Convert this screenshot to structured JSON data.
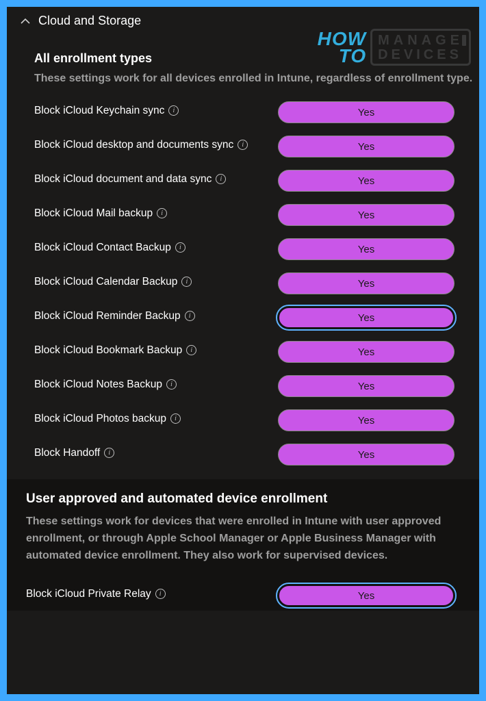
{
  "colors": {
    "page_bg": "#3ea8ff",
    "panel_bg": "#1b1a19",
    "panel_bg_darker": "#131211",
    "text": "#ffffff",
    "muted": "#9e9e9e",
    "pill_bg": "#c956e8",
    "pill_text": "#1b1a19",
    "pill_border": "#8a8886",
    "focus_ring": "#5fb3ff",
    "watermark_blue": "#35b6e8",
    "watermark_dark": "#3a3a3a"
  },
  "watermark": {
    "left_line1": "HOW",
    "left_line2": "TO",
    "right_line1": "MANAGE",
    "right_line2": "DEVICES"
  },
  "header": {
    "title": "Cloud and Storage"
  },
  "section_all": {
    "title": "All enrollment types",
    "description": "These settings work for all devices enrolled in Intune, regardless of enrollment type.",
    "rows": [
      {
        "label": "Block iCloud Keychain sync",
        "value": "Yes",
        "focused": false
      },
      {
        "label": "Block iCloud desktop and documents sync",
        "value": "Yes",
        "focused": false
      },
      {
        "label": "Block iCloud document and data sync",
        "value": "Yes",
        "focused": false
      },
      {
        "label": "Block iCloud Mail backup",
        "value": "Yes",
        "focused": false
      },
      {
        "label": "Block iCloud Contact Backup",
        "value": "Yes",
        "focused": false
      },
      {
        "label": "Block iCloud Calendar Backup",
        "value": "Yes",
        "focused": false
      },
      {
        "label": "Block iCloud Reminder Backup",
        "value": "Yes",
        "focused": true
      },
      {
        "label": "Block iCloud Bookmark Backup",
        "value": "Yes",
        "focused": false
      },
      {
        "label": "Block iCloud Notes Backup",
        "value": "Yes",
        "focused": false
      },
      {
        "label": "Block iCloud Photos backup",
        "value": "Yes",
        "focused": false
      },
      {
        "label": "Block Handoff",
        "value": "Yes",
        "focused": false
      }
    ]
  },
  "section_user": {
    "title": "User approved and automated device enrollment",
    "description": "These settings work for devices that were enrolled in Intune with user approved enrollment, or through Apple School Manager or Apple Business Manager with automated device enrollment. They also work for supervised devices.",
    "rows": [
      {
        "label": "Block iCloud Private Relay",
        "value": "Yes",
        "focused": true
      }
    ]
  }
}
